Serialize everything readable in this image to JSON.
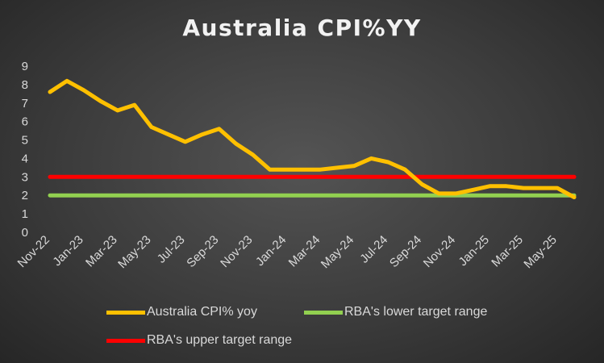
{
  "chart_data": {
    "type": "line",
    "title": "Australia CPI%YY",
    "x": [
      "Nov-22",
      "Dec-22",
      "Jan-23",
      "Feb-23",
      "Mar-23",
      "Apr-23",
      "May-23",
      "Jun-23",
      "Jul-23",
      "Aug-23",
      "Sep-23",
      "Oct-23",
      "Nov-23",
      "Dec-23",
      "Jan-24",
      "Feb-24",
      "Mar-24",
      "Apr-24",
      "May-24",
      "Jun-24",
      "Jul-24",
      "Aug-24",
      "Sep-24",
      "Oct-24",
      "Nov-24",
      "Dec-24",
      "Jan-25",
      "Feb-25",
      "Mar-25",
      "Apr-25",
      "May-25",
      "Jun-25"
    ],
    "x_tick_labels": [
      "Nov-22",
      "Jan-23",
      "Mar-23",
      "May-23",
      "Jul-23",
      "Sep-23",
      "Nov-23",
      "Jan-24",
      "Mar-24",
      "May-24",
      "Jul-24",
      "Sep-24",
      "Nov-24",
      "Jan-25",
      "Mar-25",
      "May-25"
    ],
    "ylim": [
      0,
      9
    ],
    "yticks": [
      0,
      1,
      2,
      3,
      4,
      5,
      6,
      7,
      8,
      9
    ],
    "grid": false,
    "legend_position": "bottom",
    "series": [
      {
        "name": "Australia CPI% yoy",
        "color": "#ffc000",
        "values": [
          7.6,
          8.2,
          7.7,
          7.1,
          6.6,
          6.9,
          5.7,
          5.3,
          4.9,
          5.3,
          5.6,
          4.8,
          4.2,
          3.4,
          3.4,
          3.4,
          3.4,
          3.5,
          3.6,
          4.0,
          3.8,
          3.4,
          2.6,
          2.1,
          2.1,
          2.3,
          2.5,
          2.5,
          2.4,
          2.4,
          2.4,
          1.9
        ]
      },
      {
        "name": "RBA's lower target range",
        "color": "#92d050",
        "values": [
          2,
          2,
          2,
          2,
          2,
          2,
          2,
          2,
          2,
          2,
          2,
          2,
          2,
          2,
          2,
          2,
          2,
          2,
          2,
          2,
          2,
          2,
          2,
          2,
          2,
          2,
          2,
          2,
          2,
          2,
          2,
          2
        ]
      },
      {
        "name": "RBA's upper target range",
        "color": "#ff0000",
        "values": [
          3,
          3,
          3,
          3,
          3,
          3,
          3,
          3,
          3,
          3,
          3,
          3,
          3,
          3,
          3,
          3,
          3,
          3,
          3,
          3,
          3,
          3,
          3,
          3,
          3,
          3,
          3,
          3,
          3,
          3,
          3,
          3
        ]
      }
    ]
  }
}
